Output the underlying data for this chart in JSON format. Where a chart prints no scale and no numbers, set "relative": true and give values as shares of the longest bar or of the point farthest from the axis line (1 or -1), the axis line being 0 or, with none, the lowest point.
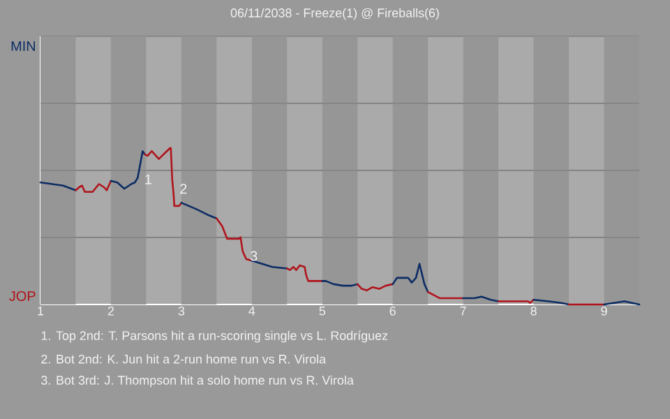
{
  "chart_data": {
    "type": "line",
    "title": "06/11/2038 - Freeze(1) @ Fireballs(6)",
    "relative": true,
    "grid": "y",
    "marker": "none",
    "line_style": "solid",
    "xlim": [
      1,
      9.5
    ],
    "xticks": [
      1,
      2,
      3,
      4,
      5,
      6,
      7,
      8,
      9
    ],
    "bands": [
      {
        "axis": "x",
        "from": 1,
        "to": 1.5,
        "color": "#969696"
      },
      {
        "axis": "x",
        "from": 2,
        "to": 2.5,
        "color": "#969696"
      },
      {
        "axis": "x",
        "from": 3,
        "to": 3.5,
        "color": "#969696"
      },
      {
        "axis": "x",
        "from": 4,
        "to": 4.5,
        "color": "#969696"
      },
      {
        "axis": "x",
        "from": 5,
        "to": 5.5,
        "color": "#969696"
      },
      {
        "axis": "x",
        "from": 6,
        "to": 6.5,
        "color": "#969696"
      },
      {
        "axis": "x",
        "from": 7,
        "to": 7.5,
        "color": "#969696"
      },
      {
        "axis": "x",
        "from": 8,
        "to": 8.5,
        "color": "#969696"
      },
      {
        "axis": "x",
        "from": 9,
        "to": 9.5,
        "color": "#969696"
      }
    ],
    "series": [
      {
        "color": "#0c2c64",
        "x": [
          1,
          1.32,
          1.5
        ],
        "values": [
          0.78,
          0.76,
          0.73
        ]
      },
      {
        "color": "#b0141c",
        "x": [
          1.5,
          1.55,
          1.59,
          1.63,
          1.74,
          1.83,
          1.9,
          1.94,
          2
        ],
        "values": [
          0.73,
          0.75,
          0.76,
          0.72,
          0.72,
          0.77,
          0.75,
          0.73,
          0.79
        ]
      },
      {
        "color": "#0c2c64",
        "x": [
          2,
          2.09,
          2.19,
          2.29,
          2.34,
          2.38,
          2.45,
          2.48
        ],
        "values": [
          0.79,
          0.78,
          0.74,
          0.77,
          0.78,
          0.81,
          0.98,
          0.96
        ]
      },
      {
        "color": "#b0141c",
        "x": [
          2.48,
          2.52,
          2.58,
          2.68,
          2.77,
          2.84,
          2.85,
          2.87,
          2.89,
          2.9,
          2.97,
          3
        ],
        "values": [
          0.96,
          0.95,
          0.98,
          0.93,
          0.97,
          1,
          1,
          0.8,
          0.7,
          0.63,
          0.63,
          0.65
        ]
      },
      {
        "color": "#0c2c64",
        "x": [
          3,
          3.21,
          3.39,
          3.5
        ],
        "values": [
          0.65,
          0.61,
          0.57,
          0.55
        ]
      },
      {
        "color": "#b0141c",
        "x": [
          3.5,
          3.58,
          3.65,
          3.82,
          3.84,
          3.87,
          3.92,
          4
        ],
        "values": [
          0.55,
          0.5,
          0.42,
          0.42,
          0.43,
          0.34,
          0.29,
          0.28
        ]
      },
      {
        "color": "#0c2c64",
        "x": [
          4,
          4.29,
          4.5
        ],
        "values": [
          0.28,
          0.24,
          0.23
        ]
      },
      {
        "color": "#b0141c",
        "x": [
          4.5,
          4.54,
          4.59,
          4.63,
          4.68,
          4.75,
          4.77,
          4.8,
          5
        ],
        "values": [
          0.23,
          0.22,
          0.24,
          0.22,
          0.25,
          0.24,
          0.19,
          0.15,
          0.15
        ]
      },
      {
        "color": "#0c2c64",
        "x": [
          5,
          5.05,
          5.16,
          5.29,
          5.42,
          5.5
        ],
        "values": [
          0.15,
          0.15,
          0.13,
          0.12,
          0.12,
          0.13
        ]
      },
      {
        "color": "#b0141c",
        "x": [
          5.5,
          5.56,
          5.63,
          5.71,
          5.81,
          5.9,
          6
        ],
        "values": [
          0.13,
          0.1,
          0.09,
          0.11,
          0.1,
          0.12,
          0.13
        ]
      },
      {
        "color": "#0c2c64",
        "x": [
          6,
          6.06,
          6.22,
          6.27,
          6.33,
          6.38,
          6.45,
          6.5
        ],
        "values": [
          0.13,
          0.17,
          0.17,
          0.14,
          0.17,
          0.26,
          0.13,
          0.08
        ]
      },
      {
        "color": "#b0141c",
        "x": [
          6.5,
          6.67,
          6.98,
          7
        ],
        "values": [
          0.08,
          0.04,
          0.04,
          0.04
        ]
      },
      {
        "color": "#0c2c64",
        "x": [
          7,
          7.16,
          7.26,
          7.39,
          7.5
        ],
        "values": [
          0.04,
          0.04,
          0.05,
          0.03,
          0.02
        ]
      },
      {
        "color": "#b0141c",
        "x": [
          7.5,
          7.92,
          7.95,
          8
        ],
        "values": [
          0.02,
          0.02,
          0.01,
          0.03
        ]
      },
      {
        "color": "#0c2c64",
        "x": [
          8,
          8.21,
          8.39,
          8.5
        ],
        "values": [
          0.03,
          0.02,
          0.01,
          0
        ]
      },
      {
        "color": "#b0141c",
        "x": [
          8.5,
          9
        ],
        "values": [
          0,
          0
        ]
      },
      {
        "color": "#0c2c64",
        "x": [
          9,
          9.14,
          9.29,
          9.5
        ],
        "values": [
          0,
          0.01,
          0.02,
          0
        ]
      }
    ],
    "annotations": [
      "MIN",
      "JOP",
      {
        "text": "1",
        "x": 2.45,
        "y": 0.8
      },
      {
        "text": "2",
        "x": 2.95,
        "y": 0.74
      },
      {
        "text": "3",
        "x": 3.95,
        "y": 0.31
      },
      "1. Top 2nd: T. Parsons hit a run-scoring single vs L. Rodríguez",
      "2. Bot 2nd: K. Jun hit a 2-run home run vs R. Virola",
      "3. Bot 3rd: J. Thompson hit a solo home run vs R. Virola"
    ]
  }
}
